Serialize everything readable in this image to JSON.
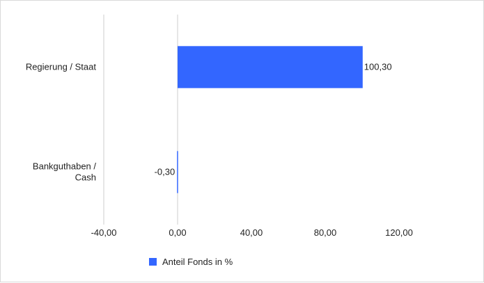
{
  "chart_data": {
    "type": "bar",
    "orientation": "horizontal",
    "categories": [
      [
        "Regierung / Staat"
      ],
      [
        "Bankguthaben /",
        "Cash"
      ]
    ],
    "series": [
      {
        "name": "Anteil Fonds in %",
        "values": [
          100.3,
          -0.3
        ],
        "labels": [
          "100,30",
          "-0,30"
        ],
        "color": "#3366ff"
      }
    ],
    "xlim": [
      -40,
      120
    ],
    "xticks": [
      -40,
      0,
      40,
      80,
      120
    ],
    "xtick_labels": [
      "-40,00",
      "0,00",
      "40,00",
      "80,00",
      "120,00"
    ],
    "grid": false,
    "legend_position": "bottom"
  }
}
